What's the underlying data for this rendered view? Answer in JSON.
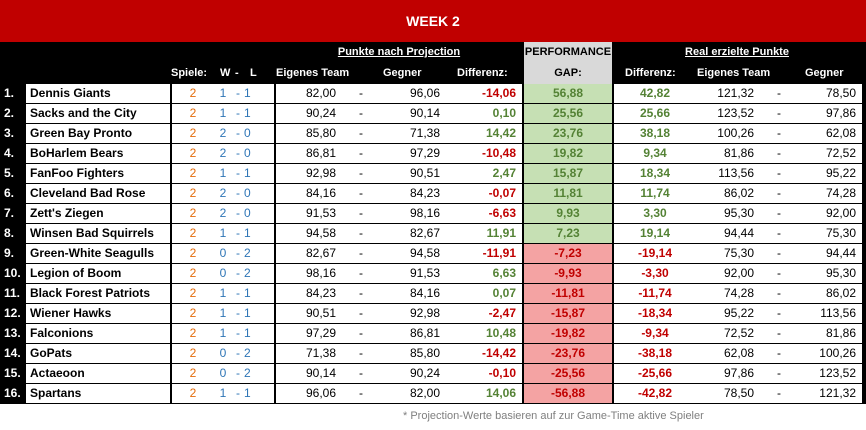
{
  "title": "WEEK 2",
  "header": {
    "group_projection": "Punkte nach Projection",
    "group_performance_line1": "PERFORMANCE",
    "group_performance_line2": "GAP:",
    "group_real": "Real erzielte Punkte",
    "col_spiele": "Spiele:",
    "col_w": "W",
    "col_dash": "-",
    "col_l": "L",
    "col_own": "Eigenes Team",
    "col_opp": "Gegner",
    "col_diff": "Differenz:",
    "col_real_diff": "Differenz:",
    "col_real_own": "Eigenes Team",
    "col_real_opp": "Gegner"
  },
  "colors": {
    "title_bg": "#c00000",
    "positive": "#548235",
    "negative": "#c00000",
    "gap_positive_bg": "#c6e0b4",
    "gap_negative_bg": "#f4a3a3"
  },
  "rows": [
    {
      "rank": "1.",
      "team": "Dennis Giants",
      "games": "2",
      "w": "1",
      "sep": "-",
      "l": "1",
      "proj_own": "82,00",
      "dash": "-",
      "proj_opp": "96,06",
      "proj_diff": "-14,06",
      "gap": "56,88",
      "real_diff": "42,82",
      "real_own": "121,32",
      "dash2": "-",
      "real_opp": "78,50"
    },
    {
      "rank": "2.",
      "team": "Sacks and the City",
      "games": "2",
      "w": "1",
      "sep": "-",
      "l": "1",
      "proj_own": "90,24",
      "dash": "-",
      "proj_opp": "90,14",
      "proj_diff": "0,10",
      "gap": "25,56",
      "real_diff": "25,66",
      "real_own": "123,52",
      "dash2": "-",
      "real_opp": "97,86"
    },
    {
      "rank": "3.",
      "team": "Green Bay Pronto",
      "games": "2",
      "w": "2",
      "sep": "-",
      "l": "0",
      "proj_own": "85,80",
      "dash": "-",
      "proj_opp": "71,38",
      "proj_diff": "14,42",
      "gap": "23,76",
      "real_diff": "38,18",
      "real_own": "100,26",
      "dash2": "-",
      "real_opp": "62,08"
    },
    {
      "rank": "4.",
      "team": "BoHarlem Bears",
      "games": "2",
      "w": "2",
      "sep": "-",
      "l": "0",
      "proj_own": "86,81",
      "dash": "-",
      "proj_opp": "97,29",
      "proj_diff": "-10,48",
      "gap": "19,82",
      "real_diff": "9,34",
      "real_own": "81,86",
      "dash2": "-",
      "real_opp": "72,52"
    },
    {
      "rank": "5.",
      "team": "FanFoo Fighters",
      "games": "2",
      "w": "1",
      "sep": "-",
      "l": "1",
      "proj_own": "92,98",
      "dash": "-",
      "proj_opp": "90,51",
      "proj_diff": "2,47",
      "gap": "15,87",
      "real_diff": "18,34",
      "real_own": "113,56",
      "dash2": "-",
      "real_opp": "95,22"
    },
    {
      "rank": "6.",
      "team": "Cleveland Bad Rose",
      "games": "2",
      "w": "2",
      "sep": "-",
      "l": "0",
      "proj_own": "84,16",
      "dash": "-",
      "proj_opp": "84,23",
      "proj_diff": "-0,07",
      "gap": "11,81",
      "real_diff": "11,74",
      "real_own": "86,02",
      "dash2": "-",
      "real_opp": "74,28"
    },
    {
      "rank": "7.",
      "team": "Zett's Ziegen",
      "games": "2",
      "w": "2",
      "sep": "-",
      "l": "0",
      "proj_own": "91,53",
      "dash": "-",
      "proj_opp": "98,16",
      "proj_diff": "-6,63",
      "gap": "9,93",
      "real_diff": "3,30",
      "real_own": "95,30",
      "dash2": "-",
      "real_opp": "92,00"
    },
    {
      "rank": "8.",
      "team": "Winsen Bad Squirrels",
      "games": "2",
      "w": "1",
      "sep": "-",
      "l": "1",
      "proj_own": "94,58",
      "dash": "-",
      "proj_opp": "82,67",
      "proj_diff": "11,91",
      "gap": "7,23",
      "real_diff": "19,14",
      "real_own": "94,44",
      "dash2": "-",
      "real_opp": "75,30"
    },
    {
      "rank": "9.",
      "team": "Green-White Seagulls",
      "games": "2",
      "w": "0",
      "sep": "-",
      "l": "2",
      "proj_own": "82,67",
      "dash": "-",
      "proj_opp": "94,58",
      "proj_diff": "-11,91",
      "gap": "-7,23",
      "real_diff": "-19,14",
      "real_own": "75,30",
      "dash2": "-",
      "real_opp": "94,44"
    },
    {
      "rank": "10.",
      "team": "Legion of Boom",
      "games": "2",
      "w": "0",
      "sep": "-",
      "l": "2",
      "proj_own": "98,16",
      "dash": "-",
      "proj_opp": "91,53",
      "proj_diff": "6,63",
      "gap": "-9,93",
      "real_diff": "-3,30",
      "real_own": "92,00",
      "dash2": "-",
      "real_opp": "95,30"
    },
    {
      "rank": "11.",
      "team": "Black Forest Patriots",
      "games": "2",
      "w": "1",
      "sep": "-",
      "l": "1",
      "proj_own": "84,23",
      "dash": "-",
      "proj_opp": "84,16",
      "proj_diff": "0,07",
      "gap": "-11,81",
      "real_diff": "-11,74",
      "real_own": "74,28",
      "dash2": "-",
      "real_opp": "86,02"
    },
    {
      "rank": "12.",
      "team": "Wiener Hawks",
      "games": "2",
      "w": "1",
      "sep": "-",
      "l": "1",
      "proj_own": "90,51",
      "dash": "-",
      "proj_opp": "92,98",
      "proj_diff": "-2,47",
      "gap": "-15,87",
      "real_diff": "-18,34",
      "real_own": "95,22",
      "dash2": "-",
      "real_opp": "113,56"
    },
    {
      "rank": "13.",
      "team": "Falconions",
      "games": "2",
      "w": "1",
      "sep": "-",
      "l": "1",
      "proj_own": "97,29",
      "dash": "-",
      "proj_opp": "86,81",
      "proj_diff": "10,48",
      "gap": "-19,82",
      "real_diff": "-9,34",
      "real_own": "72,52",
      "dash2": "-",
      "real_opp": "81,86"
    },
    {
      "rank": "14.",
      "team": "GoPats",
      "games": "2",
      "w": "0",
      "sep": "-",
      "l": "2",
      "proj_own": "71,38",
      "dash": "-",
      "proj_opp": "85,80",
      "proj_diff": "-14,42",
      "gap": "-23,76",
      "real_diff": "-38,18",
      "real_own": "62,08",
      "dash2": "-",
      "real_opp": "100,26"
    },
    {
      "rank": "15.",
      "team": "Actaeoon",
      "games": "2",
      "w": "0",
      "sep": "-",
      "l": "2",
      "proj_own": "90,14",
      "dash": "-",
      "proj_opp": "90,24",
      "proj_diff": "-0,10",
      "gap": "-25,56",
      "real_diff": "-25,66",
      "real_own": "97,86",
      "dash2": "-",
      "real_opp": "123,52"
    },
    {
      "rank": "16.",
      "team": "Spartans",
      "games": "2",
      "w": "1",
      "sep": "-",
      "l": "1",
      "proj_own": "96,06",
      "dash": "-",
      "proj_opp": "82,00",
      "proj_diff": "14,06",
      "gap": "-56,88",
      "real_diff": "-42,82",
      "real_own": "78,50",
      "dash2": "-",
      "real_opp": "121,32"
    }
  ],
  "footnote": "* Projection-Werte basieren auf zur Game-Time aktive Spieler"
}
